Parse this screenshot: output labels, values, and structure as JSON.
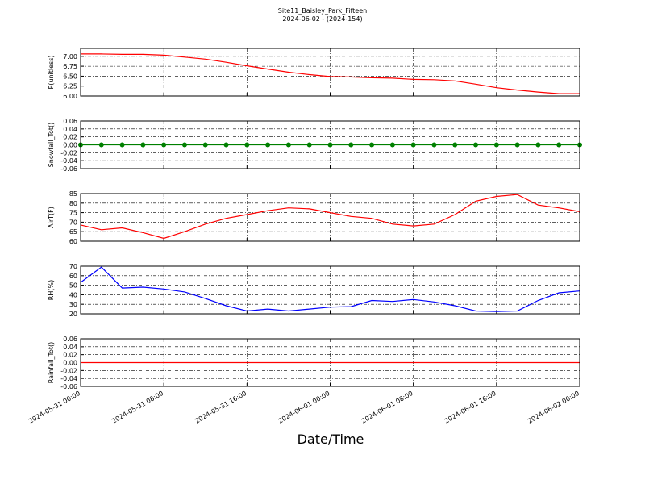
{
  "title": "Site11_Baisley_Park_Fifteen",
  "subtitle": "2024-06-02 - (2024-154)",
  "xlabel": "Date/Time",
  "chart_data": [
    {
      "type": "line",
      "ylabel": "P(unitless)",
      "color": "#ff0000",
      "grid": true,
      "x": [
        "2024-05-31 00:00",
        "2024-05-31 02:00",
        "2024-05-31 04:00",
        "2024-05-31 06:00",
        "2024-05-31 08:00",
        "2024-05-31 10:00",
        "2024-05-31 12:00",
        "2024-05-31 14:00",
        "2024-05-31 16:00",
        "2024-05-31 18:00",
        "2024-05-31 20:00",
        "2024-05-31 22:00",
        "2024-06-01 00:00",
        "2024-06-01 02:00",
        "2024-06-01 04:00",
        "2024-06-01 06:00",
        "2024-06-01 08:00",
        "2024-06-01 10:00",
        "2024-06-01 12:00",
        "2024-06-01 14:00",
        "2024-06-01 16:00",
        "2024-06-01 18:00",
        "2024-06-01 20:00",
        "2024-06-01 22:00",
        "2024-06-02 00:00"
      ],
      "values": [
        7.06,
        7.06,
        7.05,
        7.05,
        7.03,
        6.98,
        6.93,
        6.85,
        6.76,
        6.68,
        6.6,
        6.54,
        6.49,
        6.48,
        6.46,
        6.45,
        6.42,
        6.41,
        6.38,
        6.3,
        6.21,
        6.15,
        6.1,
        6.06,
        6.06
      ],
      "xlim": [
        "2024-05-31 00:00",
        "2024-06-02 00:00"
      ],
      "xticks": [
        "2024-05-31 00:00",
        "2024-05-31 08:00",
        "2024-05-31 16:00",
        "2024-06-01 00:00",
        "2024-06-01 08:00",
        "2024-06-01 16:00",
        "2024-06-02 00:00"
      ],
      "ylim": [
        6,
        7.2
      ],
      "yticks": [
        {
          "value": 6,
          "label": "6.00"
        },
        6.25,
        {
          "value": 6.5,
          "label": "6.50"
        },
        6.75,
        {
          "value": 7,
          "label": "7.00"
        }
      ]
    },
    {
      "type": "line",
      "ylabel": "Snowfall_Tot()",
      "color": "#008000",
      "markers": true,
      "grid": true,
      "x": [
        "2024-05-31 00:00",
        "2024-05-31 02:00",
        "2024-05-31 04:00",
        "2024-05-31 06:00",
        "2024-05-31 08:00",
        "2024-05-31 10:00",
        "2024-05-31 12:00",
        "2024-05-31 14:00",
        "2024-05-31 16:00",
        "2024-05-31 18:00",
        "2024-05-31 20:00",
        "2024-05-31 22:00",
        "2024-06-01 00:00",
        "2024-06-01 02:00",
        "2024-06-01 04:00",
        "2024-06-01 06:00",
        "2024-06-01 08:00",
        "2024-06-01 10:00",
        "2024-06-01 12:00",
        "2024-06-01 14:00",
        "2024-06-01 16:00",
        "2024-06-01 18:00",
        "2024-06-01 20:00",
        "2024-06-01 22:00",
        "2024-06-02 00:00"
      ],
      "values": [
        0,
        0,
        0,
        0,
        0,
        0,
        0,
        0,
        0,
        0,
        0,
        0,
        0,
        0,
        0,
        0,
        0,
        0,
        0,
        0,
        0,
        0,
        0,
        0,
        0
      ],
      "xlim": [
        "2024-05-31 00:00",
        "2024-06-02 00:00"
      ],
      "xticks": [
        "2024-05-31 00:00",
        "2024-05-31 08:00",
        "2024-05-31 16:00",
        "2024-06-01 00:00",
        "2024-06-01 08:00",
        "2024-06-01 16:00",
        "2024-06-02 00:00"
      ],
      "ylim": [
        -0.06,
        0.06
      ],
      "yticks": [
        -0.06,
        -0.04,
        -0.02,
        {
          "value": 0,
          "label": "0.00"
        },
        0.02,
        0.04,
        0.06
      ]
    },
    {
      "type": "line",
      "ylabel": "AirT(F)",
      "color": "#ff0000",
      "grid": true,
      "x": [
        "2024-05-31 00:00",
        "2024-05-31 02:00",
        "2024-05-31 04:00",
        "2024-05-31 06:00",
        "2024-05-31 08:00",
        "2024-05-31 10:00",
        "2024-05-31 12:00",
        "2024-05-31 14:00",
        "2024-05-31 16:00",
        "2024-05-31 18:00",
        "2024-05-31 20:00",
        "2024-05-31 22:00",
        "2024-06-01 00:00",
        "2024-06-01 02:00",
        "2024-06-01 04:00",
        "2024-06-01 06:00",
        "2024-06-01 08:00",
        "2024-06-01 10:00",
        "2024-06-01 12:00",
        "2024-06-01 14:00",
        "2024-06-01 16:00",
        "2024-06-01 18:00",
        "2024-06-01 20:00",
        "2024-06-01 22:00",
        "2024-06-02 00:00"
      ],
      "values": [
        68.5,
        66,
        67,
        64.5,
        61.5,
        65,
        69,
        72,
        74,
        76,
        77.5,
        77,
        75,
        73,
        72,
        69,
        68,
        69,
        74,
        81,
        83.5,
        84.5,
        79,
        77.5,
        75.5
      ],
      "xlim": [
        "2024-05-31 00:00",
        "2024-06-02 00:00"
      ],
      "xticks": [
        "2024-05-31 00:00",
        "2024-05-31 08:00",
        "2024-05-31 16:00",
        "2024-06-01 00:00",
        "2024-06-01 08:00",
        "2024-06-01 16:00",
        "2024-06-02 00:00"
      ],
      "ylim": [
        60,
        85
      ],
      "yticks": [
        60,
        65,
        70,
        75,
        80,
        85
      ]
    },
    {
      "type": "line",
      "ylabel": "RH(%)",
      "color": "#0000ff",
      "grid": true,
      "x": [
        "2024-05-31 00:00",
        "2024-05-31 02:00",
        "2024-05-31 04:00",
        "2024-05-31 06:00",
        "2024-05-31 08:00",
        "2024-05-31 10:00",
        "2024-05-31 12:00",
        "2024-05-31 14:00",
        "2024-05-31 16:00",
        "2024-05-31 18:00",
        "2024-05-31 20:00",
        "2024-05-31 22:00",
        "2024-06-01 00:00",
        "2024-06-01 02:00",
        "2024-06-01 04:00",
        "2024-06-01 06:00",
        "2024-06-01 08:00",
        "2024-06-01 10:00",
        "2024-06-01 12:00",
        "2024-06-01 14:00",
        "2024-06-01 16:00",
        "2024-06-01 18:00",
        "2024-06-01 20:00",
        "2024-06-01 22:00",
        "2024-06-02 00:00"
      ],
      "values": [
        53,
        69,
        47,
        48,
        46,
        43,
        36,
        28.5,
        23,
        25,
        23,
        25,
        27,
        27.5,
        34,
        33,
        35,
        32.5,
        28.5,
        23,
        22.5,
        23,
        34,
        42,
        44
      ],
      "xlim": [
        "2024-05-31 00:00",
        "2024-06-02 00:00"
      ],
      "xticks": [
        "2024-05-31 00:00",
        "2024-05-31 08:00",
        "2024-05-31 16:00",
        "2024-06-01 00:00",
        "2024-06-01 08:00",
        "2024-06-01 16:00",
        "2024-06-02 00:00"
      ],
      "ylim": [
        20,
        70
      ],
      "yticks": [
        20,
        30,
        40,
        50,
        60,
        70
      ]
    },
    {
      "type": "line",
      "ylabel": "Rainfall_Tot()",
      "color": "#ff0000",
      "grid": true,
      "x": [
        "2024-05-31 00:00",
        "2024-05-31 02:00",
        "2024-05-31 04:00",
        "2024-05-31 06:00",
        "2024-05-31 08:00",
        "2024-05-31 10:00",
        "2024-05-31 12:00",
        "2024-05-31 14:00",
        "2024-05-31 16:00",
        "2024-05-31 18:00",
        "2024-05-31 20:00",
        "2024-05-31 22:00",
        "2024-06-01 00:00",
        "2024-06-01 02:00",
        "2024-06-01 04:00",
        "2024-06-01 06:00",
        "2024-06-01 08:00",
        "2024-06-01 10:00",
        "2024-06-01 12:00",
        "2024-06-01 14:00",
        "2024-06-01 16:00",
        "2024-06-01 18:00",
        "2024-06-01 20:00",
        "2024-06-01 22:00",
        "2024-06-02 00:00"
      ],
      "values": [
        0,
        0,
        0,
        0,
        0,
        0,
        0,
        0,
        0,
        0,
        0,
        0,
        0,
        0,
        0,
        0,
        0,
        0,
        0,
        0,
        0,
        0,
        0,
        0,
        0
      ],
      "xlim": [
        "2024-05-31 00:00",
        "2024-06-02 00:00"
      ],
      "xticks": [
        "2024-05-31 00:00",
        "2024-05-31 08:00",
        "2024-05-31 16:00",
        "2024-06-01 00:00",
        "2024-06-01 08:00",
        "2024-06-01 16:00",
        "2024-06-02 00:00"
      ],
      "ylim": [
        -0.06,
        0.06
      ],
      "yticks": [
        -0.06,
        -0.04,
        -0.02,
        {
          "value": 0,
          "label": "0.00"
        },
        0.02,
        0.04,
        0.06
      ]
    }
  ]
}
